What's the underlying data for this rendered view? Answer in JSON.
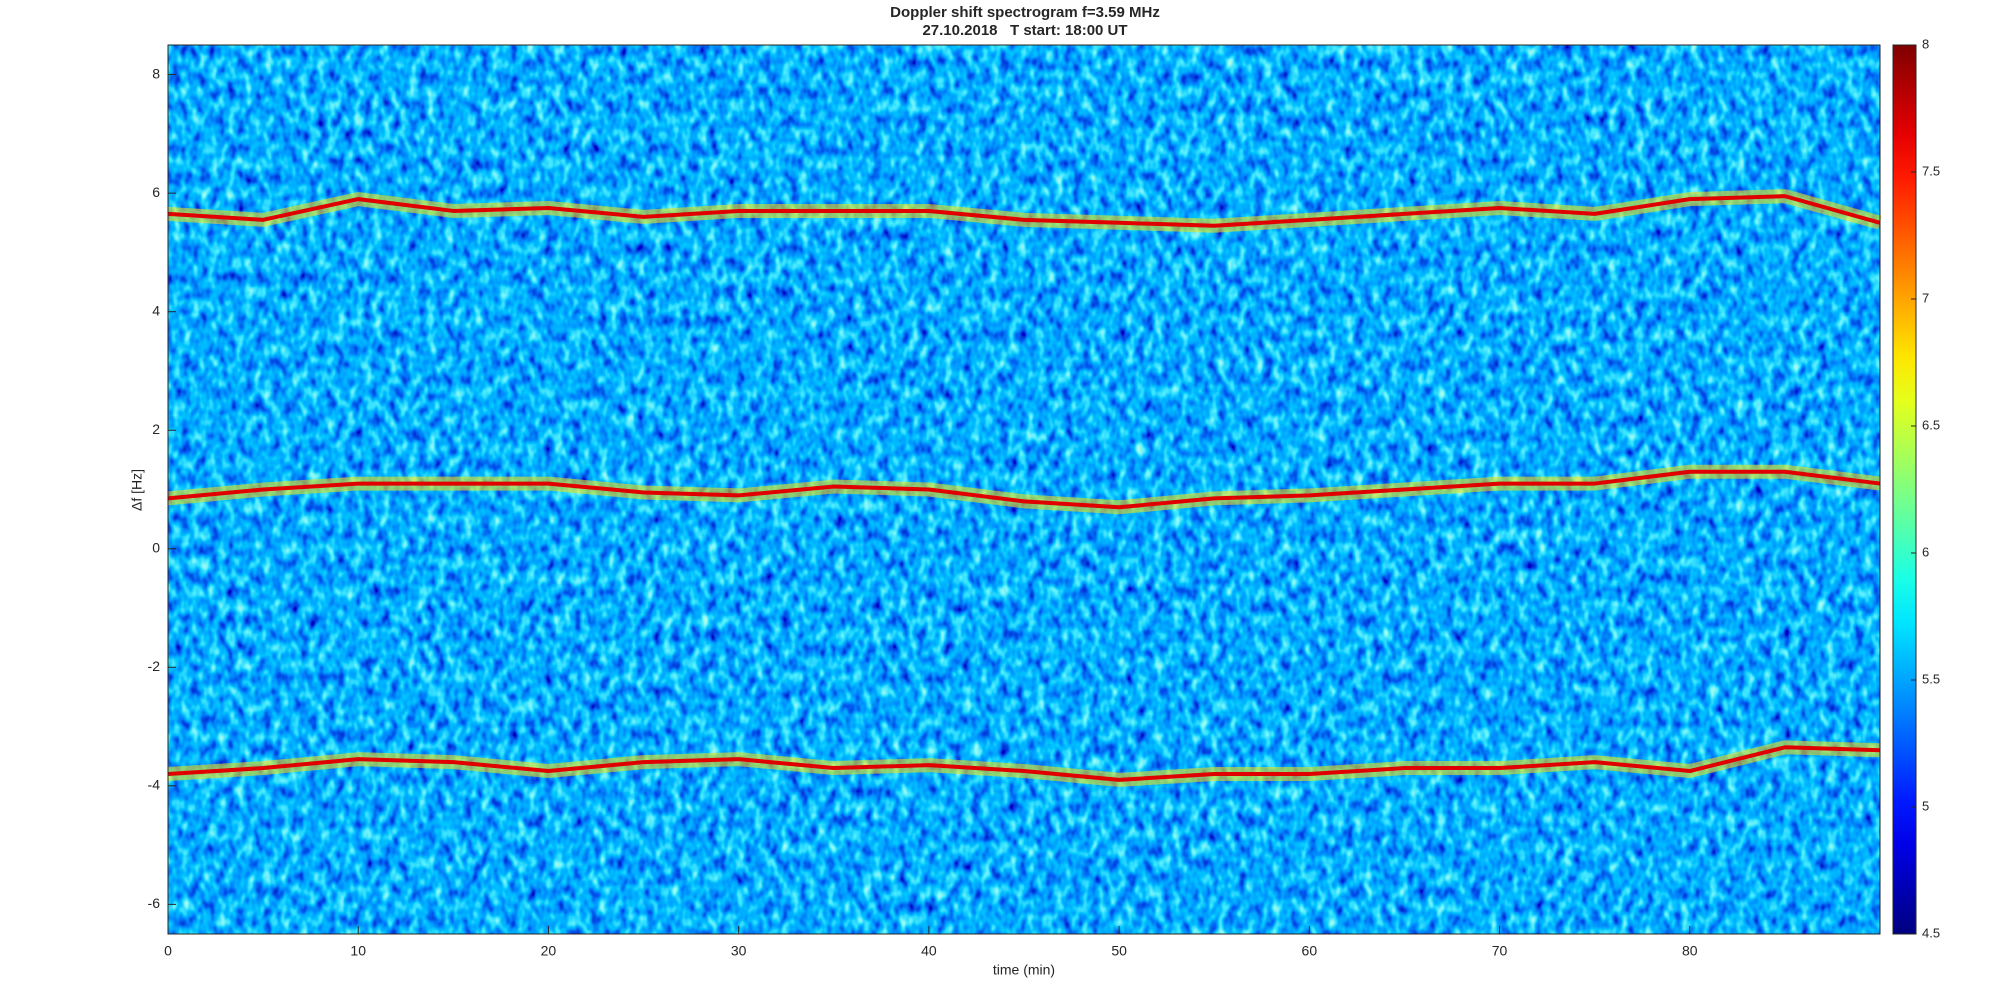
{
  "chart_data": {
    "type": "spectrogram",
    "title": "Doppler shift spectrogram f=3.59 MHz",
    "subtitle": "27.10.2018   T start: 18:00 UT",
    "x_label": "time (min)",
    "y_label": "Δf [Hz]",
    "xlim": [
      0,
      90
    ],
    "xticks": [
      0,
      10,
      20,
      30,
      40,
      50,
      60,
      70,
      80
    ],
    "ylim": [
      -6.5,
      8.5
    ],
    "yticks": [
      -6,
      -4,
      -2,
      0,
      2,
      4,
      6,
      8
    ],
    "colormap": "jet",
    "clim": [
      4.5,
      8
    ],
    "cticks": [
      4.5,
      5,
      5.5,
      6,
      6.5,
      7,
      7.5,
      8
    ],
    "x": [
      0,
      5,
      10,
      15,
      20,
      25,
      30,
      35,
      40,
      45,
      50,
      55,
      60,
      65,
      70,
      75,
      80,
      85,
      90
    ],
    "series": [
      {
        "color": "#e00000",
        "values": [
          5.65,
          5.55,
          5.9,
          5.7,
          5.75,
          5.6,
          5.7,
          5.7,
          5.7,
          5.55,
          5.5,
          5.45,
          5.55,
          5.65,
          5.75,
          5.65,
          5.9,
          5.95,
          5.5
        ]
      },
      {
        "color": "#e00000",
        "values": [
          0.85,
          1.0,
          1.1,
          1.1,
          1.1,
          0.95,
          0.9,
          1.05,
          1.0,
          0.8,
          0.7,
          0.85,
          0.9,
          1.0,
          1.1,
          1.1,
          1.3,
          1.3,
          1.1
        ]
      },
      {
        "color": "#e00000",
        "values": [
          -3.8,
          -3.7,
          -3.55,
          -3.6,
          -3.75,
          -3.6,
          -3.55,
          -3.7,
          -3.65,
          -3.75,
          -3.9,
          -3.8,
          -3.8,
          -3.7,
          -3.7,
          -3.6,
          -3.75,
          -3.35,
          -3.4
        ]
      }
    ]
  }
}
